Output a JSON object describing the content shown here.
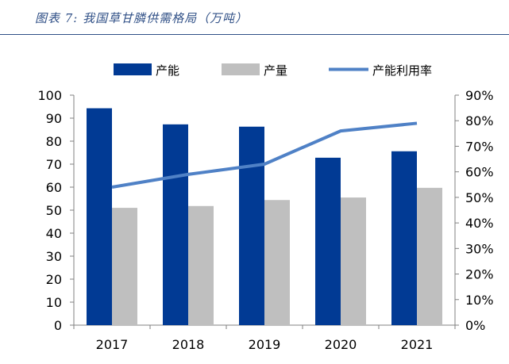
{
  "figure_title": "图表 7:  我国草甘膦供需格局（万吨）",
  "colors": {
    "capacity": "#013a94",
    "output": "#bfbfbf",
    "utilization": "#4f81c6",
    "title": "#2f4f86"
  },
  "chart_data": {
    "type": "bar",
    "title": "",
    "categories": [
      "2017",
      "2018",
      "2019",
      "2020",
      "2021"
    ],
    "series": [
      {
        "name": "产能",
        "type": "bar",
        "axis": "left",
        "values": [
          94.3,
          87.3,
          86.3,
          72.8,
          75.6
        ]
      },
      {
        "name": "产量",
        "type": "bar",
        "axis": "left",
        "values": [
          51.0,
          51.8,
          54.4,
          55.5,
          59.7
        ]
      },
      {
        "name": "产能利用率",
        "type": "line",
        "axis": "right",
        "values": [
          54,
          59,
          63,
          76,
          79
        ]
      }
    ],
    "yleft": {
      "min": 0,
      "max": 100,
      "ticks": [
        "0",
        "10",
        "20",
        "30",
        "40",
        "50",
        "60",
        "70",
        "80",
        "90",
        "100"
      ]
    },
    "yright": {
      "min": 0,
      "max": 90,
      "ticks": [
        "0%",
        "10%",
        "20%",
        "30%",
        "40%",
        "50%",
        "60%",
        "70%",
        "80%",
        "90%"
      ]
    },
    "legend_position": "top",
    "grid": false
  }
}
